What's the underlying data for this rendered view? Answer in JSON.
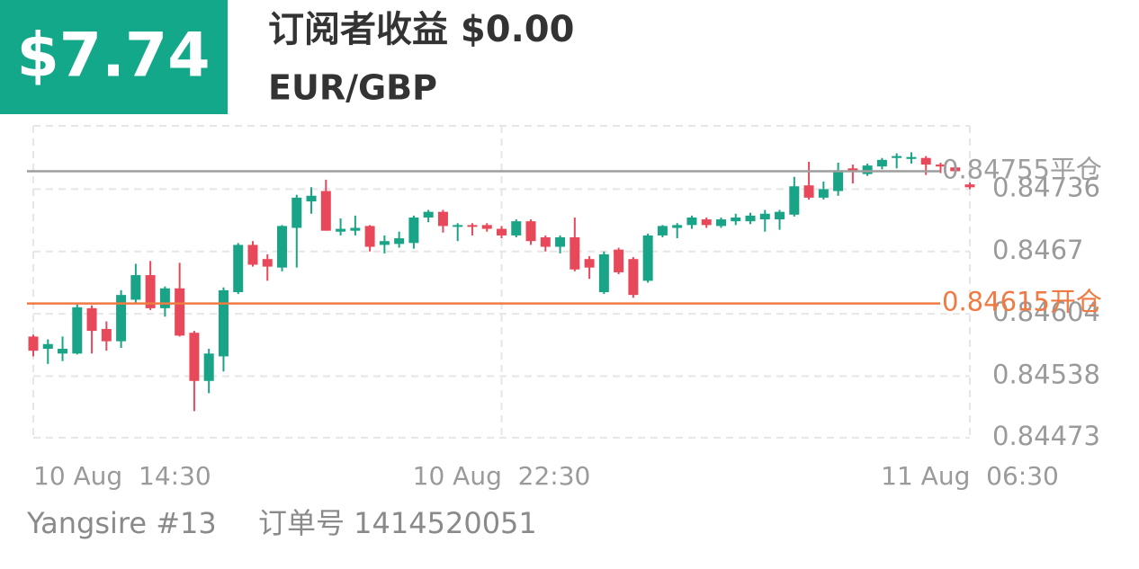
{
  "header": {
    "badge": "$7.74",
    "title": "订阅者收益 $0.00",
    "subtitle": "EUR/GBP"
  },
  "footer": {
    "account": "Yangsire #13",
    "order": "订单号 1414520051"
  },
  "chart_data": {
    "type": "candlestick",
    "categories": [
      "10 Aug  14:30",
      null,
      null,
      null,
      null,
      null,
      null,
      null,
      null,
      null,
      null,
      null,
      null,
      null,
      null,
      null,
      null,
      null,
      null,
      null,
      null,
      null,
      null,
      null,
      null,
      null,
      null,
      null,
      null,
      null,
      null,
      null,
      "10 Aug  22:30",
      null,
      null,
      null,
      null,
      null,
      null,
      null,
      null,
      null,
      null,
      null,
      null,
      null,
      null,
      null,
      null,
      null,
      null,
      null,
      null,
      null,
      null,
      null,
      null,
      null,
      null,
      null,
      null,
      null,
      null,
      null,
      "11 Aug  06:30"
    ],
    "open": [
      0.8458,
      0.84567,
      0.84562,
      0.84562,
      0.8461,
      0.84588,
      0.84575,
      0.84619,
      0.84645,
      0.8461,
      0.84631,
      0.84584,
      0.84533,
      0.84559,
      0.84627,
      0.84677,
      0.84662,
      0.84653,
      0.84695,
      0.84723,
      0.84734,
      0.84691,
      0.84692,
      0.84697,
      0.84677,
      0.84678,
      0.84679,
      0.84706,
      0.84712,
      0.84697,
      0.84698,
      0.84698,
      0.84694,
      0.84687,
      0.84702,
      0.84685,
      0.84675,
      0.84685,
      0.84662,
      0.84627,
      0.84672,
      0.84662,
      0.84639,
      0.84687,
      0.84695,
      0.84698,
      0.84704,
      0.84697,
      0.84702,
      0.84702,
      0.84704,
      0.84704,
      0.84709,
      0.8474,
      0.84727,
      0.84734,
      0.84758,
      0.84752,
      0.8476,
      0.84769,
      0.84768,
      0.84769,
      0.84762,
      0.84759,
      0.84741
    ],
    "high": [
      0.84582,
      0.84577,
      0.8458,
      0.84615,
      0.84613,
      0.84596,
      0.84629,
      0.84657,
      0.8466,
      0.84633,
      0.84658,
      0.84586,
      0.84567,
      0.84632,
      0.84679,
      0.84681,
      0.84667,
      0.84698,
      0.8473,
      0.84738,
      0.84746,
      0.84705,
      0.84708,
      0.84698,
      0.84687,
      0.84691,
      0.84708,
      0.84714,
      0.84714,
      0.847,
      0.847,
      0.847,
      0.84697,
      0.84704,
      0.84704,
      0.84687,
      0.84687,
      0.84706,
      0.84665,
      0.8467,
      0.84674,
      0.84664,
      0.84689,
      0.84698,
      0.847,
      0.84708,
      0.84706,
      0.84706,
      0.8471,
      0.84711,
      0.84714,
      0.84714,
      0.84749,
      0.84765,
      0.84744,
      0.84764,
      0.84762,
      0.84763,
      0.84769,
      0.84774,
      0.84775,
      0.84771,
      0.84764,
      0.84761,
      0.84743
    ],
    "low": [
      0.84559,
      0.84551,
      0.84554,
      0.84561,
      0.84562,
      0.84565,
      0.84568,
      0.84616,
      0.84608,
      0.84601,
      0.8458,
      0.84501,
      0.8452,
      0.84543,
      0.84625,
      0.84654,
      0.84639,
      0.84649,
      0.84653,
      0.8471,
      0.84692,
      0.84687,
      0.84687,
      0.8467,
      0.84668,
      0.84674,
      0.84673,
      0.84701,
      0.8469,
      0.84681,
      0.84687,
      0.84691,
      0.84684,
      0.84685,
      0.84677,
      0.8467,
      0.84668,
      0.84649,
      0.84641,
      0.84625,
      0.84646,
      0.84621,
      0.84637,
      0.84685,
      0.84684,
      0.84694,
      0.84695,
      0.84695,
      0.84698,
      0.84699,
      0.84691,
      0.84693,
      0.84707,
      0.84725,
      0.84725,
      0.84729,
      0.84742,
      0.8475,
      0.84757,
      0.84758,
      0.84763,
      0.84751,
      0.84753,
      0.84752,
      0.84736
    ],
    "close": [
      0.84565,
      0.84572,
      0.84567,
      0.84611,
      0.84586,
      0.84575,
      0.84624,
      0.84645,
      0.8461,
      0.84631,
      0.84581,
      0.84533,
      0.84562,
      0.84629,
      0.84677,
      0.84656,
      0.84654,
      0.84697,
      0.84727,
      0.84729,
      0.84692,
      0.84694,
      0.84695,
      0.84675,
      0.84681,
      0.84684,
      0.84706,
      0.84712,
      0.84697,
      0.84698,
      0.84697,
      0.84694,
      0.84687,
      0.84702,
      0.84681,
      0.84675,
      0.84685,
      0.84651,
      0.84653,
      0.84667,
      0.84648,
      0.84624,
      0.84687,
      0.84697,
      0.84698,
      0.84706,
      0.84698,
      0.84704,
      0.84706,
      0.84708,
      0.8471,
      0.84712,
      0.84739,
      0.84727,
      0.84736,
      0.84756,
      0.84755,
      0.84761,
      0.84767,
      0.84771,
      0.8477,
      0.84762,
      0.8476,
      0.84755,
      0.84738
    ],
    "up_color": "#1aa487",
    "down_color": "#e8495a",
    "ylim": [
      0.8447,
      0.84803
    ],
    "yticks": [
      0.84473,
      0.84538,
      0.84604,
      0.8467,
      0.84736
    ],
    "grid": true,
    "reference_lines": [
      {
        "value": 0.84755,
        "label": "0.84755平仓",
        "color": "#9e9e9e"
      },
      {
        "value": 0.84615,
        "label": "0.84615开仓",
        "color": "#f07a42"
      }
    ]
  }
}
